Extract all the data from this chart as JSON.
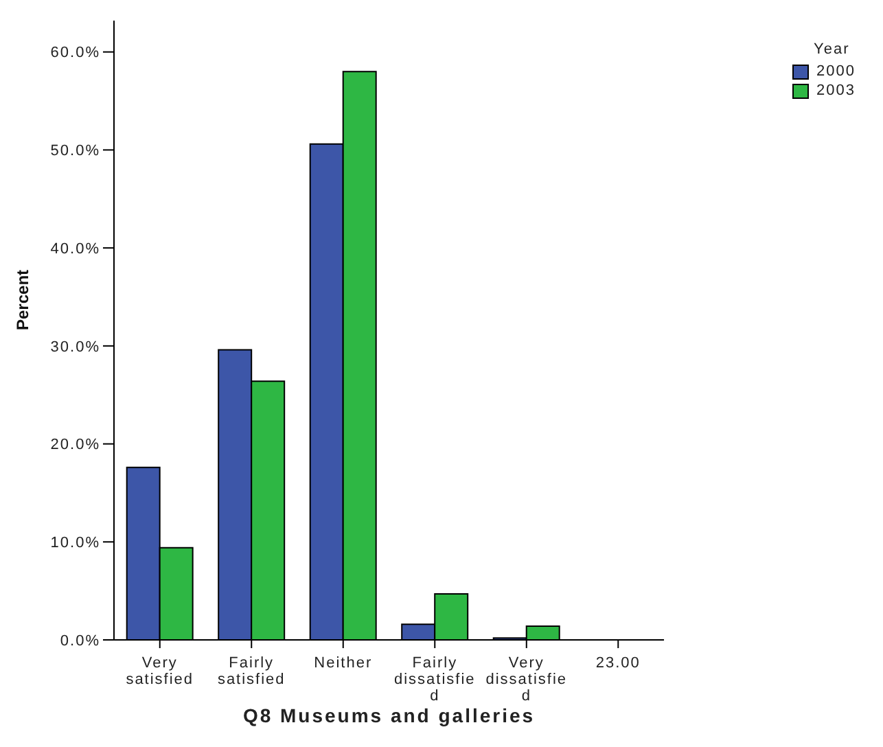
{
  "chart_data": {
    "type": "bar",
    "xlabel": "Q8 Museums and galleries",
    "ylabel": "Percent",
    "legend_title": "Year",
    "legend": "top right",
    "categories": [
      "Very satisfied",
      "Fairly satisfied",
      "Neither",
      "Fairly dissatisfied",
      "Very dissatisfied",
      "23.00"
    ],
    "series": [
      {
        "name": "2000",
        "color": "#3d56a8",
        "values": [
          17.6,
          29.6,
          50.6,
          1.6,
          0.2,
          0
        ]
      },
      {
        "name": "2003",
        "color": "#2eb744",
        "values": [
          9.4,
          26.4,
          58.0,
          4.7,
          1.4,
          0
        ]
      }
    ],
    "ylim": [
      0,
      63.2
    ],
    "yticks": [
      {
        "value": 0,
        "label": "0.0%"
      },
      {
        "value": 10,
        "label": "10.0%"
      },
      {
        "value": 20,
        "label": "20.0%"
      },
      {
        "value": 30,
        "label": "30.0%"
      },
      {
        "value": 40,
        "label": "40.0%"
      },
      {
        "value": 50,
        "label": "50.0%"
      },
      {
        "value": 60,
        "label": "60.0%"
      }
    ],
    "grid": false
  }
}
